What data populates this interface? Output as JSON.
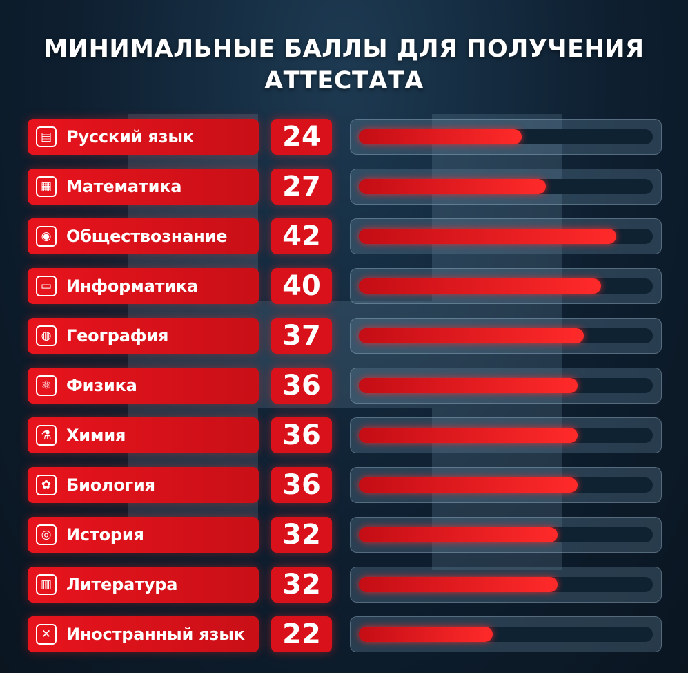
{
  "title_line1": "МИНИМАЛЬНЫЕ БАЛЛЫ ДЛЯ ПОЛУЧЕНИЯ",
  "title_line2": "АТТЕСТАТА",
  "colors": {
    "accent": "#e8141d",
    "background": "#0e1f30",
    "bar_fill": "#ff2a2a"
  },
  "chart_data": {
    "type": "bar",
    "orientation": "horizontal",
    "title": "МИНИМАЛЬНЫЕ БАЛЛЫ ДЛЯ ПОЛУЧЕНИЯ АТТЕСТАТА",
    "xlim": [
      0,
      50
    ],
    "categories": [
      "Русский язык",
      "Математика",
      "Обществознание",
      "Информатика",
      "География",
      "Физика",
      "Химия",
      "Биология",
      "История",
      "Литература",
      "Иностранный язык"
    ],
    "values": [
      24,
      27,
      42,
      40,
      37,
      36,
      36,
      36,
      32,
      32,
      22
    ],
    "icons": [
      "book-icon",
      "calculator-icon",
      "certificate-icon",
      "laptop-icon",
      "globe-icon",
      "atom-icon",
      "flask-icon",
      "sprout-icon",
      "globe-stand-icon",
      "open-book-icon",
      "uk-flag-icon"
    ],
    "bar_fractions": [
      0.555,
      0.635,
      0.875,
      0.825,
      0.765,
      0.745,
      0.745,
      0.745,
      0.675,
      0.675,
      0.455
    ]
  }
}
